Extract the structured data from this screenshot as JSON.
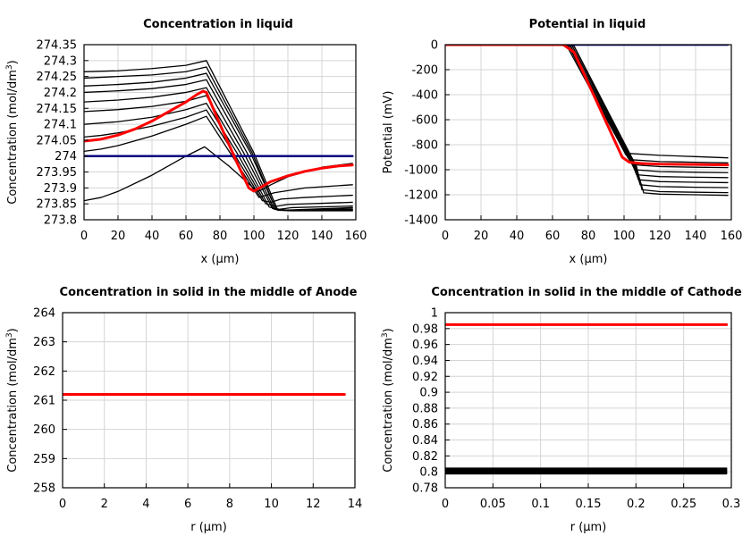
{
  "chart_data": [
    {
      "type": "line",
      "title": "Concentration in liquid",
      "xlabel": "x (µm)",
      "ylabel_main": "Concentration (mol/dm",
      "ylabel_sup": "3",
      "ylabel_tail": ")",
      "xlim": [
        0,
        160
      ],
      "ylim": [
        273.8,
        274.35
      ],
      "xticks": [
        0,
        20,
        40,
        60,
        80,
        100,
        120,
        140,
        160
      ],
      "yticks": [
        273.8,
        273.85,
        273.9,
        273.95,
        274,
        274.05,
        274.1,
        274.15,
        274.2,
        274.25,
        274.3,
        274.35
      ],
      "ytick_labels": [
        "273.8",
        "273.85",
        "273.9",
        "273.95",
        "274",
        "274.05",
        "274.1",
        "274.15",
        "274.2",
        "274.25",
        "274.3",
        "274.35"
      ],
      "grid": true,
      "series": [
        {
          "color": "#000000",
          "width": 1.3,
          "x": [
            0,
            10,
            20,
            40,
            60,
            71,
            85,
            102,
            105,
            110,
            120,
            140,
            158
          ],
          "y": [
            273.86,
            273.87,
            273.889,
            273.94,
            274.0,
            274.029,
            273.97,
            273.889,
            273.895,
            273.91,
            273.935,
            273.965,
            273.977
          ]
        },
        {
          "color": "#000000",
          "width": 1.3,
          "x": [
            0,
            10,
            20,
            40,
            60,
            72,
            86,
            103,
            106,
            112,
            130,
            158
          ],
          "y": [
            274.015,
            274.022,
            274.033,
            274.063,
            274.1,
            274.125,
            274.01,
            273.87,
            273.875,
            273.885,
            273.9,
            273.91
          ]
        },
        {
          "color": "#000000",
          "width": 1.3,
          "x": [
            0,
            10,
            20,
            40,
            60,
            72,
            88,
            105,
            110,
            116,
            130,
            158
          ],
          "y": [
            274.06,
            274.065,
            274.073,
            274.094,
            274.122,
            274.145,
            274.01,
            273.86,
            273.855,
            273.865,
            273.87,
            273.877
          ]
        },
        {
          "color": "#000000",
          "width": 1.3,
          "x": [
            0,
            20,
            40,
            60,
            72,
            90,
            107,
            113,
            120,
            158
          ],
          "y": [
            274.1,
            274.108,
            274.122,
            274.146,
            274.166,
            274.01,
            273.85,
            273.842,
            273.848,
            273.855
          ]
        },
        {
          "color": "#000000",
          "width": 1.3,
          "x": [
            0,
            20,
            40,
            60,
            72,
            92,
            109,
            115,
            122,
            158
          ],
          "y": [
            274.14,
            274.146,
            274.156,
            274.172,
            274.19,
            274.01,
            273.84,
            273.833,
            273.838,
            273.843
          ]
        },
        {
          "color": "#000000",
          "width": 1.3,
          "x": [
            0,
            20,
            40,
            60,
            72,
            94,
            111,
            118,
            158
          ],
          "y": [
            274.17,
            274.176,
            274.185,
            274.2,
            274.215,
            274.01,
            273.835,
            273.83,
            273.838
          ]
        },
        {
          "color": "#000000",
          "width": 1.3,
          "x": [
            0,
            20,
            40,
            60,
            72,
            96,
            112,
            120,
            158
          ],
          "y": [
            274.2,
            274.205,
            274.212,
            274.225,
            274.24,
            274.01,
            273.833,
            273.83,
            273.834
          ]
        },
        {
          "color": "#000000",
          "width": 1.3,
          "x": [
            0,
            20,
            40,
            60,
            72,
            98,
            113,
            122,
            158
          ],
          "y": [
            274.22,
            274.225,
            274.232,
            274.245,
            274.26,
            274.01,
            273.832,
            273.83,
            273.832
          ]
        },
        {
          "color": "#000000",
          "width": 1.3,
          "x": [
            0,
            20,
            40,
            60,
            72,
            99,
            113,
            122,
            158
          ],
          "y": [
            274.245,
            274.25,
            274.255,
            274.265,
            274.28,
            274.01,
            273.832,
            273.829,
            273.83
          ]
        },
        {
          "color": "#000000",
          "width": 1.3,
          "x": [
            0,
            20,
            40,
            60,
            72,
            100,
            114,
            122,
            158
          ],
          "y": [
            274.265,
            274.268,
            274.275,
            274.285,
            274.3,
            274.01,
            273.83,
            273.828,
            273.828
          ]
        },
        {
          "color": "#000080",
          "width": 2.5,
          "x": [
            0,
            158
          ],
          "y": [
            274.0,
            274.0
          ]
        },
        {
          "color": "#ff0000",
          "width": 3,
          "x": [
            0,
            10,
            20,
            30,
            40,
            50,
            60,
            66,
            70,
            72,
            80,
            90,
            97,
            100,
            105,
            110,
            120,
            130,
            140,
            150,
            158
          ],
          "y": [
            274.047,
            274.053,
            274.066,
            274.085,
            274.11,
            274.14,
            274.17,
            274.192,
            274.204,
            274.2,
            274.1,
            273.98,
            273.9,
            273.89,
            273.905,
            273.92,
            273.938,
            273.952,
            273.962,
            273.969,
            273.972
          ]
        }
      ]
    },
    {
      "type": "line",
      "title": "Potential in liquid",
      "xlabel": "x (µm)",
      "ylabel": "Potential (mV)",
      "xlim": [
        0,
        160
      ],
      "ylim": [
        -1400,
        0
      ],
      "xticks": [
        0,
        20,
        40,
        60,
        80,
        100,
        120,
        140,
        160
      ],
      "yticks": [
        -1400,
        -1200,
        -1000,
        -800,
        -600,
        -400,
        -200,
        0
      ],
      "ytick_labels": [
        "-1400",
        "-1200",
        "-1000",
        "-800",
        "-600",
        "-400",
        "-200",
        "0"
      ],
      "grid": true,
      "series": [
        {
          "color": "#000000",
          "width": 1.3,
          "x": [
            0,
            60,
            68,
            100,
            103,
            120,
            140,
            158
          ],
          "y": [
            0,
            0,
            -10,
            -850,
            -870,
            -885,
            -895,
            -905
          ]
        },
        {
          "color": "#000000",
          "width": 1.3,
          "x": [
            0,
            60,
            69,
            101,
            104,
            120,
            140,
            158
          ],
          "y": [
            0,
            0,
            -10,
            -880,
            -920,
            -935,
            -940,
            -945
          ]
        },
        {
          "color": "#000000",
          "width": 1.3,
          "x": [
            0,
            60,
            69,
            102,
            105,
            120,
            140,
            158
          ],
          "y": [
            0,
            0,
            -10,
            -900,
            -960,
            -975,
            -980,
            -983
          ]
        },
        {
          "color": "#000000",
          "width": 1.3,
          "x": [
            0,
            60,
            70,
            103,
            106,
            120,
            140,
            158
          ],
          "y": [
            0,
            0,
            -10,
            -915,
            -1000,
            -1015,
            -1020,
            -1023
          ]
        },
        {
          "color": "#000000",
          "width": 1.3,
          "x": [
            0,
            60,
            70,
            104,
            107,
            120,
            140,
            158
          ],
          "y": [
            0,
            0,
            -10,
            -930,
            -1040,
            -1055,
            -1060,
            -1063
          ]
        },
        {
          "color": "#000000",
          "width": 1.3,
          "x": [
            0,
            60,
            71,
            105,
            108,
            120,
            140,
            158
          ],
          "y": [
            0,
            0,
            -10,
            -945,
            -1080,
            -1095,
            -1100,
            -1103
          ]
        },
        {
          "color": "#000000",
          "width": 1.3,
          "x": [
            0,
            60,
            71,
            106,
            109,
            120,
            140,
            158
          ],
          "y": [
            0,
            0,
            -10,
            -960,
            -1120,
            -1135,
            -1140,
            -1143
          ]
        },
        {
          "color": "#000000",
          "width": 1.3,
          "x": [
            0,
            60,
            72,
            107,
            110,
            120,
            140,
            158
          ],
          "y": [
            0,
            0,
            -10,
            -975,
            -1160,
            -1175,
            -1180,
            -1183
          ]
        },
        {
          "color": "#000000",
          "width": 1.3,
          "x": [
            0,
            60,
            72,
            107,
            111,
            120,
            140,
            158
          ],
          "y": [
            0,
            0,
            -10,
            -990,
            -1185,
            -1195,
            -1200,
            -1205
          ]
        },
        {
          "color": "#000080",
          "width": 2.5,
          "x": [
            0,
            158
          ],
          "y": [
            0,
            0
          ]
        },
        {
          "color": "#ff0000",
          "width": 3,
          "x": [
            0,
            66,
            72,
            99,
            103,
            110,
            120,
            140,
            158
          ],
          "y": [
            0,
            0,
            -60,
            -900,
            -940,
            -950,
            -955,
            -958,
            -962
          ]
        }
      ]
    },
    {
      "type": "line",
      "title": "Concentration in solid in the middle of Anode",
      "xlabel": "r (µm)",
      "ylabel_main": "Concentration (mol/dm",
      "ylabel_sup": "3",
      "ylabel_tail": ")",
      "xlim": [
        0,
        14
      ],
      "ylim": [
        258,
        264
      ],
      "xticks": [
        0,
        2,
        4,
        6,
        8,
        10,
        12,
        14
      ],
      "yticks": [
        258,
        259,
        260,
        261,
        262,
        263,
        264
      ],
      "ytick_labels": [
        "258",
        "259",
        "260",
        "261",
        "262",
        "263",
        "264"
      ],
      "grid": true,
      "series": [
        {
          "color": "#ff0000",
          "width": 3,
          "x": [
            0,
            13.5
          ],
          "y": [
            261.2,
            261.2
          ]
        }
      ]
    },
    {
      "type": "line",
      "title": "Concentration in solid in the middle of Cathode",
      "xlabel": "r (µm)",
      "ylabel_main": "Concentration (mol/dm",
      "ylabel_sup": "3",
      "ylabel_tail": ")",
      "xlim": [
        0,
        0.3
      ],
      "ylim": [
        0.78,
        1
      ],
      "xticks": [
        0,
        0.05,
        0.1,
        0.15,
        0.2,
        0.25,
        0.3
      ],
      "xtick_labels": [
        "0",
        "0.05",
        "0.1",
        "0.15",
        "0.2",
        "0.25",
        "0.3"
      ],
      "yticks": [
        0.78,
        0.8,
        0.82,
        0.84,
        0.86,
        0.88,
        0.9,
        0.92,
        0.94,
        0.96,
        0.98,
        1
      ],
      "ytick_labels": [
        "0.78",
        "0.8",
        "0.82",
        "0.84",
        "0.86",
        "0.88",
        "0.9",
        "0.92",
        "0.94",
        "0.96",
        "0.98",
        "1"
      ],
      "grid": true,
      "series": [
        {
          "color": "#000000",
          "width": 1.5,
          "x": [
            0,
            0.295
          ],
          "y": [
            0.8045,
            0.8045
          ]
        },
        {
          "color": "#000000",
          "width": 1.5,
          "x": [
            0,
            0.295
          ],
          "y": [
            0.8035,
            0.8035
          ]
        },
        {
          "color": "#000000",
          "width": 1.5,
          "x": [
            0,
            0.295
          ],
          "y": [
            0.8025,
            0.8025
          ]
        },
        {
          "color": "#000000",
          "width": 1.5,
          "x": [
            0,
            0.295
          ],
          "y": [
            0.8015,
            0.8015
          ]
        },
        {
          "color": "#000000",
          "width": 1.5,
          "x": [
            0,
            0.295
          ],
          "y": [
            0.8005,
            0.8005
          ]
        },
        {
          "color": "#000000",
          "width": 1.5,
          "x": [
            0,
            0.295
          ],
          "y": [
            0.7995,
            0.7995
          ]
        },
        {
          "color": "#000000",
          "width": 1.5,
          "x": [
            0,
            0.295
          ],
          "y": [
            0.7985,
            0.7985
          ]
        },
        {
          "color": "#000000",
          "width": 1.5,
          "x": [
            0,
            0.295
          ],
          "y": [
            0.7975,
            0.7975
          ]
        },
        {
          "color": "#ff0000",
          "width": 3,
          "x": [
            0,
            0.295
          ],
          "y": [
            0.985,
            0.985
          ]
        }
      ]
    }
  ]
}
